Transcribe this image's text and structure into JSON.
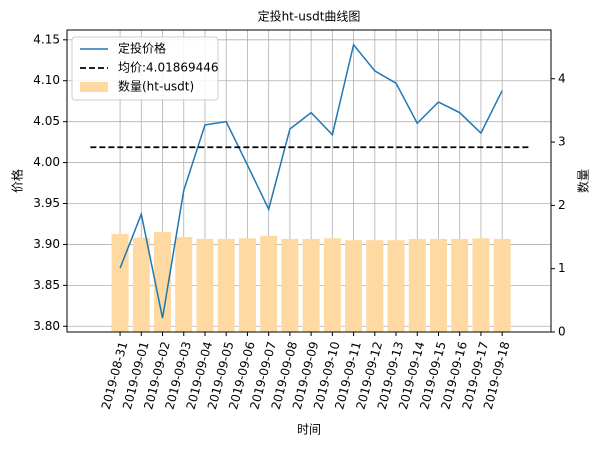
{
  "chart_data": {
    "type": "line",
    "title": "定投ht-usdt曲线图",
    "xlabel": "时间",
    "ylabel": "价格",
    "y2label": "数量",
    "categories": [
      "2019-08-31",
      "2019-09-01",
      "2019-09-02",
      "2019-09-03",
      "2019-09-04",
      "2019-09-05",
      "2019-09-06",
      "2019-09-07",
      "2019-09-08",
      "2019-09-09",
      "2019-09-10",
      "2019-09-11",
      "2019-09-12",
      "2019-09-13",
      "2019-09-14",
      "2019-09-15",
      "2019-09-16",
      "2019-09-17",
      "2019-09-18"
    ],
    "series": [
      {
        "name": "定投价格",
        "type": "line",
        "color": "#1f77b4",
        "values": [
          3.871,
          3.937,
          3.81,
          3.966,
          4.046,
          4.05,
          3.997,
          3.943,
          4.041,
          4.061,
          4.034,
          4.144,
          4.112,
          4.097,
          4.048,
          4.074,
          4.061,
          4.036,
          4.088
        ]
      },
      {
        "name": "均价:4.01869446",
        "type": "hline",
        "color": "#000000",
        "value": 4.01869446
      },
      {
        "name": "数量(ht-usdt)",
        "type": "bar",
        "axis": "y2",
        "color": "#fed9a2",
        "values": [
          1.55,
          1.49,
          1.58,
          1.5,
          1.47,
          1.47,
          1.48,
          1.52,
          1.47,
          1.47,
          1.48,
          1.45,
          1.45,
          1.45,
          1.47,
          1.47,
          1.47,
          1.48,
          1.47
        ]
      }
    ],
    "ylim": [
      3.793,
      4.162
    ],
    "yticks": [
      {
        "value": 3.8,
        "label": "3.80"
      },
      3.85,
      {
        "value": 3.9,
        "label": "3.90"
      },
      3.95,
      {
        "value": 4.0,
        "label": "4.00"
      },
      4.05,
      {
        "value": 4.1,
        "label": "4.10"
      },
      4.15
    ],
    "y2lim": [
      0,
      4.77
    ],
    "y2ticks": [
      0,
      1,
      2,
      3,
      4
    ],
    "grid": true,
    "legend": "upper left"
  }
}
